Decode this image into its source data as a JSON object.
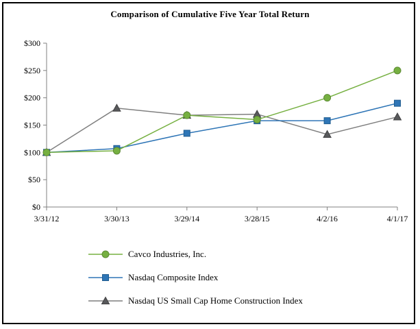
{
  "title": "Comparison of Cumulative Five Year Total Return",
  "chart_data": {
    "type": "line",
    "title": "Comparison of Cumulative Five Year Total Return",
    "categories": [
      "3/31/12",
      "3/30/13",
      "3/29/14",
      "3/28/15",
      "4/2/16",
      "4/1/17"
    ],
    "series": [
      {
        "name": "Cavco Industries, Inc.",
        "marker": "circle",
        "color": "#76B041",
        "line_color": "#76B041",
        "marker_stroke": "#5C8A33",
        "values": [
          100,
          103,
          168,
          160,
          200,
          250
        ]
      },
      {
        "name": "Nasdaq Composite Index",
        "marker": "square",
        "color": "#2E75B6",
        "line_color": "#2E75B6",
        "marker_stroke": "#1F5C8F",
        "values": [
          100,
          107,
          135,
          158,
          158,
          190
        ]
      },
      {
        "name": "Nasdaq US Small Cap Home Construction Index",
        "marker": "triangle",
        "color": "#58595B",
        "line_color": "#7F7F7F",
        "marker_stroke": "#404042",
        "values": [
          100,
          181,
          168,
          170,
          133,
          165
        ]
      }
    ],
    "xlabel": "",
    "ylabel": "",
    "ylim": [
      0,
      300
    ],
    "y_ticks": [
      0,
      50,
      100,
      150,
      200,
      250,
      300
    ],
    "y_tick_labels": [
      "$0",
      "$50",
      "$100",
      "$150",
      "$200",
      "$250",
      "$300"
    ],
    "grid": false,
    "legend_position": "bottom",
    "axis_color": "#808080"
  }
}
